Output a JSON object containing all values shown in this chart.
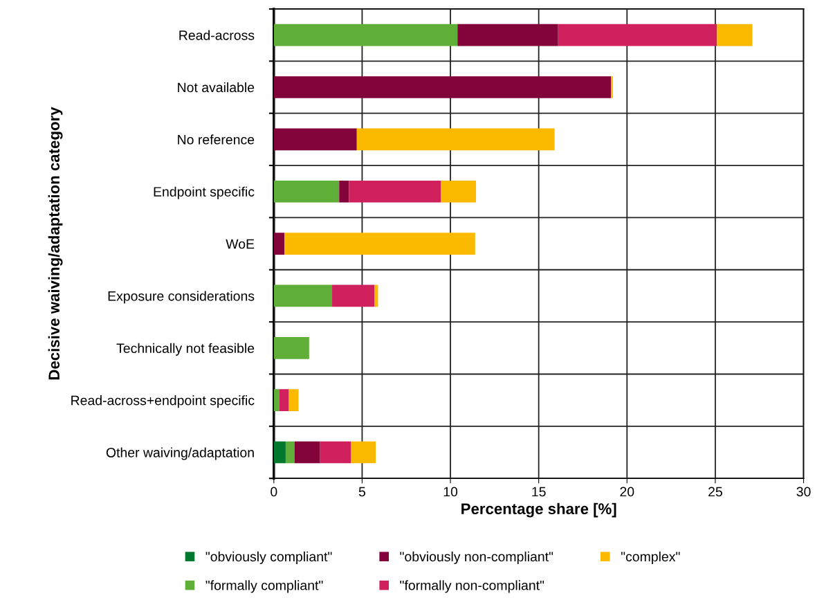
{
  "chart_data": {
    "type": "bar",
    "orientation": "horizontal",
    "stacked": true,
    "xlabel": "Percentage share [%]",
    "ylabel": "Decisive waiving/adaptation category",
    "categories": [
      "Read-across",
      "Not available",
      "No reference",
      "Endpoint specific",
      "WoE",
      "Exposure considerations",
      "Technically not feasible",
      "Read-across+endpoint specific",
      "Other waiving/adaptation"
    ],
    "series": [
      {
        "name": "\"obviously compliant\"",
        "color": "#00782d",
        "values": [
          0,
          0,
          0,
          0,
          0,
          0,
          0,
          0,
          0.67
        ]
      },
      {
        "name": "\"formally compliant\"",
        "color": "#5fae37",
        "values": [
          10.4,
          0,
          0,
          3.7,
          0,
          3.3,
          2.0,
          0.3,
          0.5
        ]
      },
      {
        "name": "\"obviously non-compliant\"",
        "color": "#82043a",
        "values": [
          5.7,
          19.1,
          4.7,
          0.55,
          0.6,
          0,
          0,
          0,
          1.45
        ]
      },
      {
        "name": "\"formally non-compliant\"",
        "color": "#d0215e",
        "values": [
          9.0,
          0,
          0,
          5.2,
          0,
          2.4,
          0,
          0.55,
          1.75
        ]
      },
      {
        "name": "\"complex\"",
        "color": "#fbba00",
        "values": [
          2.0,
          0.1,
          11.2,
          2.0,
          10.8,
          0.2,
          0,
          0.55,
          1.4
        ]
      }
    ],
    "xlim": [
      0,
      30
    ],
    "xticks": [
      0,
      5,
      10,
      15,
      20,
      25,
      30
    ],
    "grid": true,
    "legend": "bottom"
  }
}
